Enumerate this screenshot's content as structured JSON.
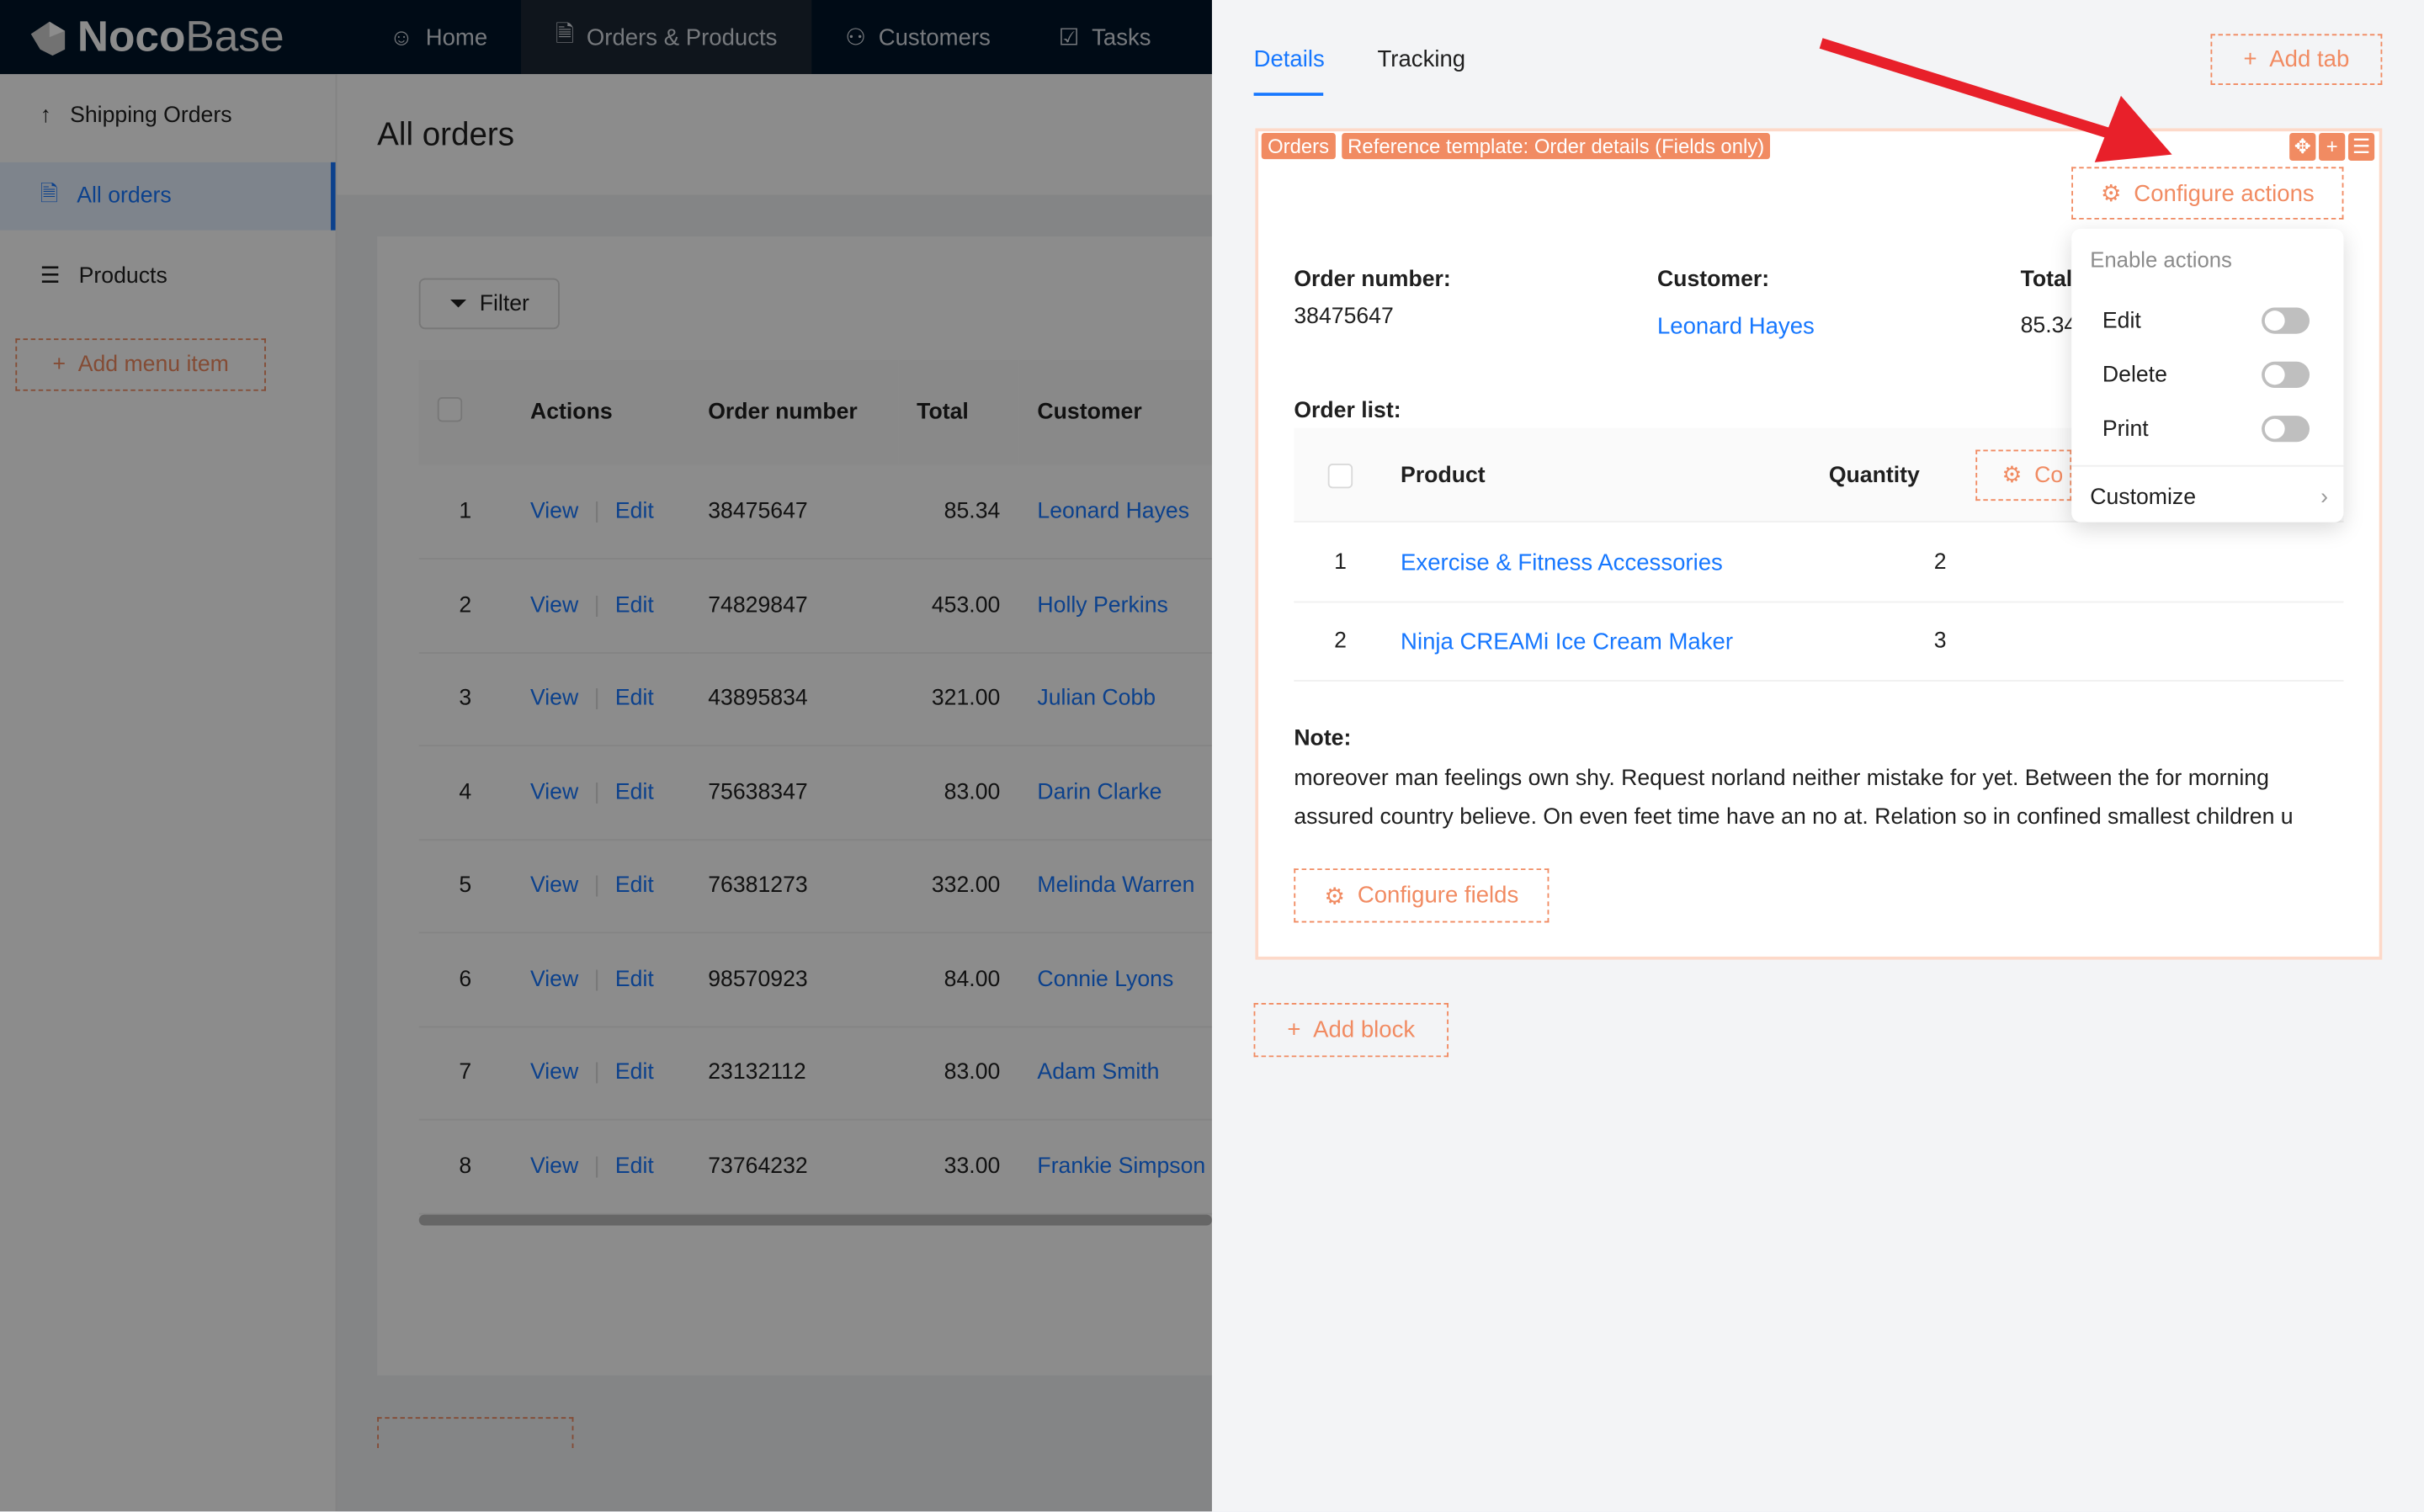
{
  "header": {
    "logo": {
      "bold": "Noco",
      "light": "Base"
    },
    "nav": [
      {
        "label": "Home",
        "icon": "smile-icon"
      },
      {
        "label": "Orders & Products",
        "icon": "file-check-icon",
        "active": true
      },
      {
        "label": "Customers",
        "icon": "users-icon"
      },
      {
        "label": "Tasks",
        "icon": "check-square-icon"
      }
    ]
  },
  "sidebar": {
    "items": [
      {
        "label": "Shipping Orders",
        "icon": "arrow-up-icon"
      },
      {
        "label": "All orders",
        "icon": "file-check-icon",
        "selected": true
      },
      {
        "label": "Products",
        "icon": "list-icon"
      }
    ],
    "add_menu_item": "Add menu item"
  },
  "page": {
    "title": "All orders",
    "filter_label": "Filter",
    "columns": [
      "Actions",
      "Order number",
      "Total",
      "Customer"
    ],
    "view_label": "View",
    "edit_label": "Edit",
    "rows": [
      {
        "n": "1",
        "order": "38475647",
        "total": "85.34",
        "customer": "Leonard Hayes"
      },
      {
        "n": "2",
        "order": "74829847",
        "total": "453.00",
        "customer": "Holly Perkins"
      },
      {
        "n": "3",
        "order": "43895834",
        "total": "321.00",
        "customer": "Julian Cobb"
      },
      {
        "n": "4",
        "order": "75638347",
        "total": "83.00",
        "customer": "Darin Clarke"
      },
      {
        "n": "5",
        "order": "76381273",
        "total": "332.00",
        "customer": "Melinda Warren"
      },
      {
        "n": "6",
        "order": "98570923",
        "total": "84.00",
        "customer": "Connie Lyons"
      },
      {
        "n": "7",
        "order": "23132112",
        "total": "83.00",
        "customer": "Adam Smith"
      },
      {
        "n": "8",
        "order": "73764232",
        "total": "33.00",
        "customer": "Frankie Simpson"
      }
    ]
  },
  "drawer": {
    "tabs": [
      "Details",
      "Tracking"
    ],
    "active_tab": "Details",
    "add_tab": "Add tab",
    "block": {
      "tags": [
        "Orders",
        "Reference template: Order details (Fields only)"
      ],
      "configure_actions": "Configure actions",
      "fields": {
        "order_number_label": "Order number:",
        "order_number": "38475647",
        "customer_label": "Customer:",
        "customer": "Leonard Hayes",
        "total_label": "Total",
        "total": "85.34"
      },
      "order_list_label": "Order list:",
      "order_columns": [
        "Product",
        "Quantity"
      ],
      "order_configure": "Co",
      "order_rows": [
        {
          "n": "1",
          "product": "Exercise & Fitness Accessories",
          "qty": "2"
        },
        {
          "n": "2",
          "product": "Ninja CREAMi Ice Cream Maker",
          "qty": "3"
        }
      ],
      "note_label": "Note:",
      "note": "moreover man feelings own shy. Request norland neither mistake for yet. Between the for morning assured country believe. On even feet time have an no at. Relation so in confined smallest children u",
      "configure_fields": "Configure fields"
    },
    "add_block": "Add block",
    "menu": {
      "title": "Enable actions",
      "items": [
        {
          "label": "Edit",
          "enabled": false
        },
        {
          "label": "Delete",
          "enabled": false
        },
        {
          "label": "Print",
          "enabled": false
        }
      ],
      "customize": "Customize"
    }
  },
  "colors": {
    "accent": "#1677ff",
    "designer": "#f18b62",
    "header": "#001529",
    "arrow": "#e8202a"
  }
}
